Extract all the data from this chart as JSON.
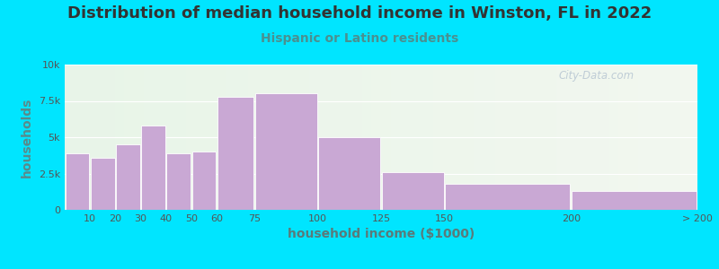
{
  "title": "Distribution of median household income in Winston, FL in 2022",
  "subtitle": "Hispanic or Latino residents",
  "xlabel": "household income ($1000)",
  "ylabel": "households",
  "bar_color": "#c9a8d4",
  "background_outer": "#00e5ff",
  "background_inner_left": "#e8f5e8",
  "background_inner_right": "#f0f5ee",
  "title_color": "#333333",
  "subtitle_color": "#4a9090",
  "ylabel_color": "#5a8a8a",
  "xlabel_color": "#5a7a7a",
  "tick_color": "#555555",
  "watermark": "City-Data.com",
  "watermark_color": "#aabbcc",
  "categories": [
    "10",
    "20",
    "30",
    "40",
    "50",
    "60",
    "75",
    "100",
    "125",
    "150",
    "200",
    "> 200"
  ],
  "left_edges": [
    0,
    10,
    20,
    30,
    40,
    50,
    60,
    75,
    100,
    125,
    150,
    200
  ],
  "right_edges": [
    10,
    20,
    30,
    40,
    50,
    60,
    75,
    100,
    125,
    150,
    200,
    250
  ],
  "values": [
    3900,
    3600,
    4500,
    5800,
    3900,
    4000,
    7800,
    8000,
    5000,
    2600,
    1800,
    1300
  ],
  "ylim": [
    0,
    10000
  ],
  "xlim": [
    0,
    250
  ],
  "yticks": [
    0,
    2500,
    5000,
    7500,
    10000
  ],
  "ytick_labels": [
    "0",
    "2.5k",
    "5k",
    "7.5k",
    "10k"
  ],
  "xtick_positions": [
    10,
    20,
    30,
    40,
    50,
    60,
    75,
    100,
    125,
    150,
    200,
    250
  ],
  "xtick_labels": [
    "10",
    "20",
    "30",
    "40",
    "50",
    "60",
    "75",
    "100",
    "125",
    "150",
    "200",
    "> 200"
  ],
  "title_fontsize": 13,
  "subtitle_fontsize": 10,
  "axis_label_fontsize": 10,
  "tick_fontsize": 8
}
